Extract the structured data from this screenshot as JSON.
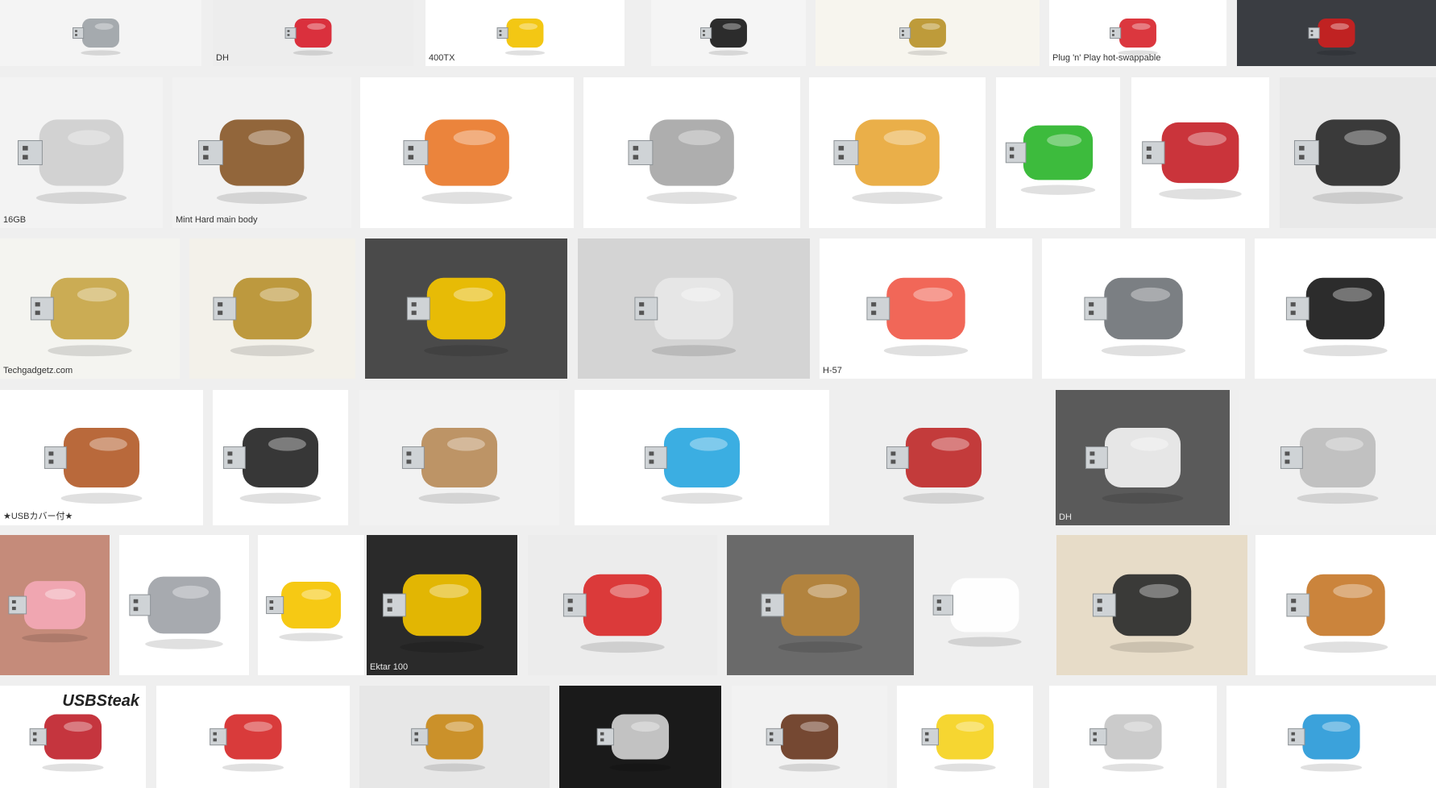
{
  "page": {
    "theme_background": "#efefef"
  },
  "tiles": [
    {
      "label": "",
      "bg": "#f4f4f4",
      "fg": "#9da3a7",
      "icon": "carabiner-drive-icon"
    },
    {
      "label": "DH",
      "bg": "#ededed",
      "fg": "#d8202e",
      "icon": "robot-drive-icon",
      "cap_class": ""
    },
    {
      "label": "400TX",
      "bg": "#ffffff",
      "fg": "#f2c200",
      "icon": "film-canister-drive-icon"
    },
    {
      "label": "",
      "bg": "#f5f5f5",
      "fg": "#1a1a1a",
      "icon": "grenade-drive-icon"
    },
    {
      "label": "",
      "bg": "#f7f5ee",
      "fg": "#b8922a",
      "icon": "brass-drive-icon"
    },
    {
      "label": "Plug 'n' Play hot-swappable",
      "bg": "#ffffff",
      "fg": "#d8262e",
      "icon": "red-figure-drive-icon"
    },
    {
      "label": "",
      "bg": "#3a3d42",
      "fg": "#cc1f1f",
      "icon": "brick-drive-icon"
    },
    {
      "label": "16GB",
      "bg": "#f3f3f3",
      "fg": "#cfcfcf",
      "icon": "flat-card-drive-icon"
    },
    {
      "label": "Mint Hard main body",
      "bg": "#f2f2f2",
      "fg": "#8a5a2b",
      "icon": "mint-tin-drive-icon"
    },
    {
      "label": "",
      "bg": "#ffffff",
      "fg": "#e97a2b",
      "icon": "pizza-drive-icon"
    },
    {
      "label": "",
      "bg": "#ffffff",
      "fg": "#a7a7a7",
      "icon": "key-drive-icon"
    },
    {
      "label": "",
      "bg": "#ffffff",
      "fg": "#e8a83a",
      "icon": "burger-drive-icon"
    },
    {
      "label": "",
      "bg": "#ffffff",
      "fg": "#2cb52c",
      "icon": "dinosaur-drive-icon"
    },
    {
      "label": "",
      "bg": "#ffffff",
      "fg": "#c6232a",
      "icon": "iron-man-drive-icon"
    },
    {
      "label": "",
      "bg": "#e9e9e9",
      "fg": "#2a2a2a",
      "icon": "car-key-drive-icon"
    },
    {
      "label": "Techgadgetz.com",
      "bg": "#f4f4f0",
      "fg": "#c7a546",
      "icon": "cryptex-drive-icon",
      "cap_class": ""
    },
    {
      "label": "",
      "bg": "#f3f1ea",
      "fg": "#b8912f",
      "icon": "cryptex-open-drive-icon"
    },
    {
      "label": "",
      "bg": "#4a4a4a",
      "fg": "#f4c400",
      "icon": "sports-car-drive-icon"
    },
    {
      "label": "",
      "bg": "#d4d4d4",
      "fg": "#e7e7e7",
      "icon": "slim-drive-icon"
    },
    {
      "label": "H-57",
      "bg": "#ffffff",
      "fg": "#f05a4a",
      "icon": "rocket-drive-icon"
    },
    {
      "label": "",
      "bg": "#ffffff",
      "fg": "#707478",
      "icon": "revolver-drive-icon"
    },
    {
      "label": "",
      "bg": "#ffffff",
      "fg": "#1a1a1a",
      "icon": "panda-drive-icon"
    },
    {
      "label": "★USBカバー付★",
      "bg": "#ffffff",
      "fg": "#b35c2a",
      "icon": "dog-drive-icon"
    },
    {
      "label": "",
      "bg": "#ffffff",
      "fg": "#262626",
      "icon": "transformer-drive-icon"
    },
    {
      "label": "",
      "bg": "#f2f2f2",
      "fg": "#b88c5a",
      "icon": "cork-bottle-drive-icon"
    },
    {
      "label": "",
      "bg": "#ffffff",
      "fg": "#2aa7e0",
      "icon": "blue-drive-icon"
    },
    {
      "label": "",
      "bg": "#efefef",
      "fg": "#bf2b2b",
      "icon": "figure-hands-drive-icon"
    },
    {
      "label": "DH",
      "bg": "#5a5a5a",
      "fg": "#f2f2f2",
      "icon": "white-car-drive-icon",
      "cap_class": ""
    },
    {
      "label": "",
      "bg": "#f0f0f0",
      "fg": "#bdbdbd",
      "icon": "syringe-drive-icon"
    },
    {
      "label": "",
      "bg": "#c58b7a",
      "fg": "#f3a8b5",
      "icon": "pig-drive-icon"
    },
    {
      "label": "",
      "bg": "#ffffff",
      "fg": "#9fa3a8",
      "icon": "shark-drive-icon"
    },
    {
      "label": "",
      "bg": "#ffffff",
      "fg": "#f5c400",
      "icon": "angry-birds-drive-icon"
    },
    {
      "label": "Ektar 100",
      "bg": "#2a2a2a",
      "fg": "#f2c200",
      "icon": "ektar-film-drive-icon"
    },
    {
      "label": "",
      "bg": "#ececec",
      "fg": "#d92a2a",
      "icon": "mario-drive-icon"
    },
    {
      "label": "",
      "bg": "#6a6a6a",
      "fg": "#b8863b",
      "icon": "steampunk-drive-icon"
    },
    {
      "label": "",
      "bg": "#efefef",
      "fg": "#ffffff",
      "icon": "wii-remote-drive-icon"
    },
    {
      "label": "",
      "bg": "#e7dcc8",
      "fg": "#2b2b2b",
      "icon": "oreo-drive-icon"
    },
    {
      "label": "",
      "bg": "#ffffff",
      "fg": "#c77a2b",
      "icon": "bagel-drive-icon"
    },
    {
      "label": "USBSteak",
      "bg": "#ffffff",
      "fg": "#c0242e",
      "icon": "steak-drive-icon",
      "cap_class": "big top"
    },
    {
      "label": "",
      "bg": "#ffffff",
      "fg": "#d62a2a",
      "icon": "cola-can-drive-icon"
    },
    {
      "label": "",
      "bg": "#e7e7e7",
      "fg": "#c98a1a",
      "icon": "wall-e-drive-icon"
    },
    {
      "label": "",
      "bg": "#1a1a1a",
      "fg": "#d0d0d0",
      "icon": "skull-drive-icon"
    },
    {
      "label": "",
      "bg": "#f2f2f2",
      "fg": "#6a3a22",
      "icon": "wine-cork-drive-icon"
    },
    {
      "label": "",
      "bg": "#ffffff",
      "fg": "#f5d31f",
      "icon": "banana-drive-icon"
    },
    {
      "label": "",
      "bg": "#ffffff",
      "fg": "#c7c7c7",
      "icon": "robot-figure-drive-icon"
    },
    {
      "label": "",
      "bg": "#ffffff",
      "fg": "#2a9ad8",
      "icon": "rainbow-drives-icon"
    },
    {
      "label": "",
      "bg": "#dcdcdc",
      "fg": "#5a3a1e",
      "icon": "leather-shoe-drive-icon"
    }
  ]
}
